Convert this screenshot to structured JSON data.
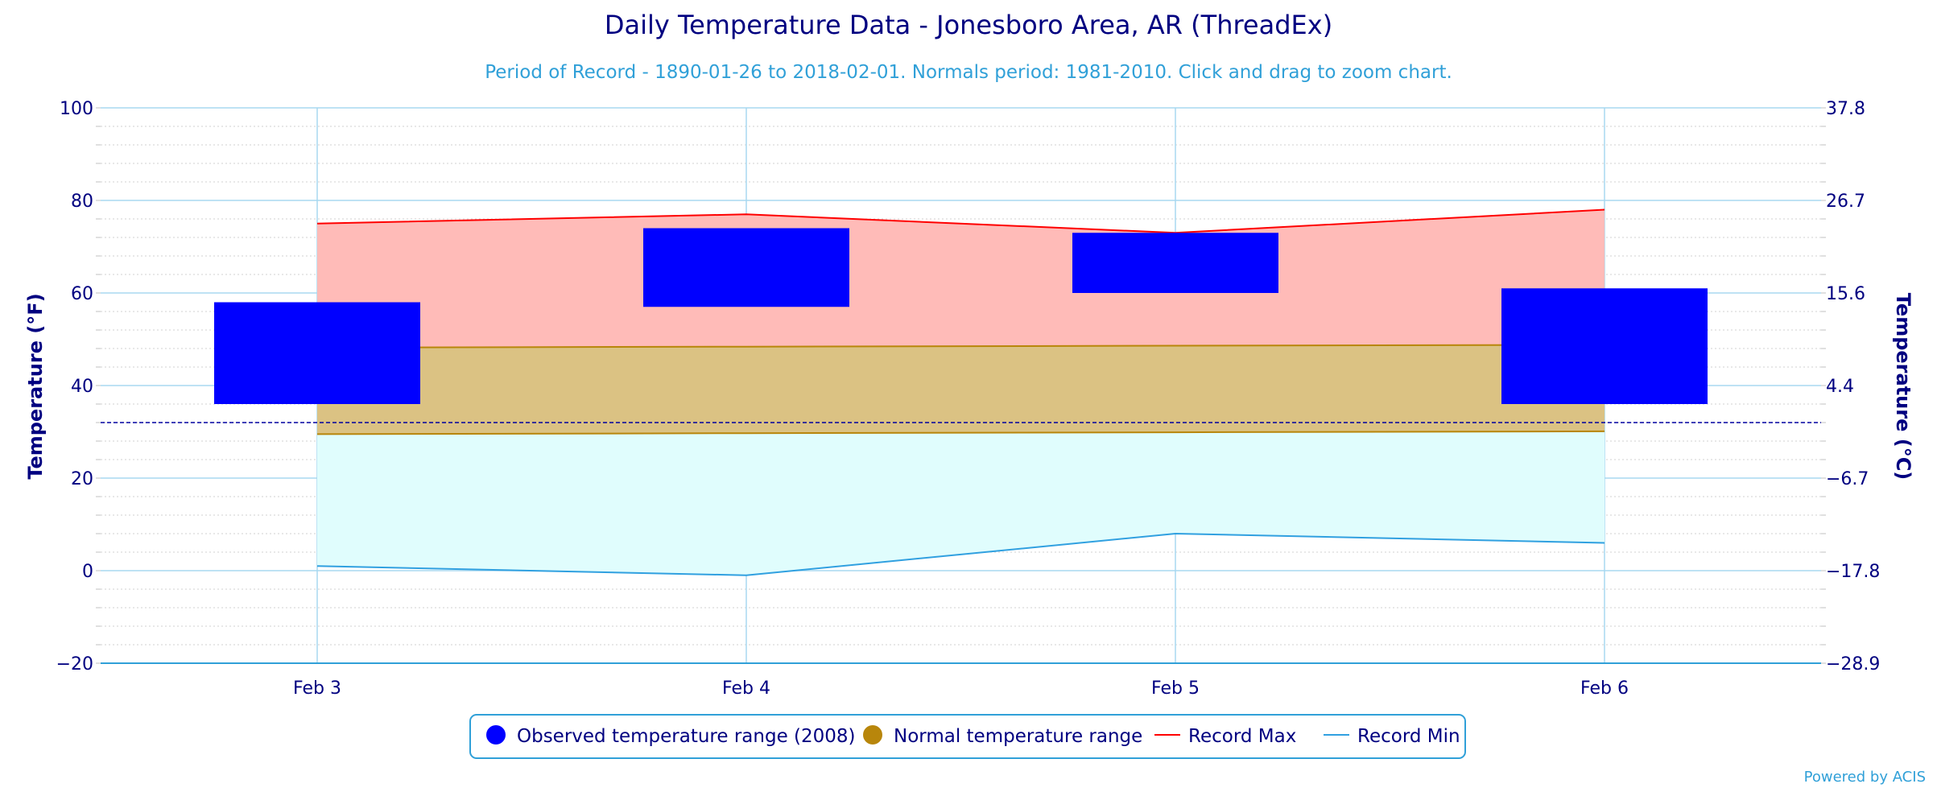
{
  "chart_data": {
    "type": "bar",
    "title": "Daily Temperature Data - Jonesboro Area, AR (ThreadEx)",
    "subtitle": "Period of Record - 1890-01-26 to 2018-02-01. Normals period: 1981-2010. Click and drag to zoom chart.",
    "ylabel": "Temperature (°F)",
    "ylabel_right": "Temperature (°C)",
    "categories": [
      "Feb 3",
      "Feb 4",
      "Feb 5",
      "Feb 6"
    ],
    "ylim": [
      -20,
      100
    ],
    "yticks": [
      -20,
      0,
      20,
      40,
      60,
      80,
      100
    ],
    "yticks_right": [
      "-28.9",
      "-17.8",
      "-6.7",
      "4.4",
      "15.6",
      "26.7",
      "37.8"
    ],
    "freezing_line": 32,
    "observed": {
      "name": "Observed temperature range (2008)",
      "color": "#0000ff",
      "low": [
        36,
        57,
        60,
        36
      ],
      "high": [
        58,
        74,
        73,
        61
      ]
    },
    "normal": {
      "name": "Normal temperature range",
      "color": "#b8860b",
      "low": [
        29.5,
        29.7,
        29.9,
        30.1
      ],
      "high": [
        48.2,
        48.4,
        48.6,
        48.8
      ]
    },
    "record_max": {
      "name": "Record Max",
      "color": "#ff0000",
      "values": [
        75,
        77,
        73,
        78
      ]
    },
    "record_min": {
      "name": "Record Min",
      "color": "#30a0e0",
      "values": [
        1,
        -1,
        8,
        6
      ]
    },
    "grid": true,
    "legend_position": "bottom-center"
  },
  "credit": "Powered by ACIS"
}
